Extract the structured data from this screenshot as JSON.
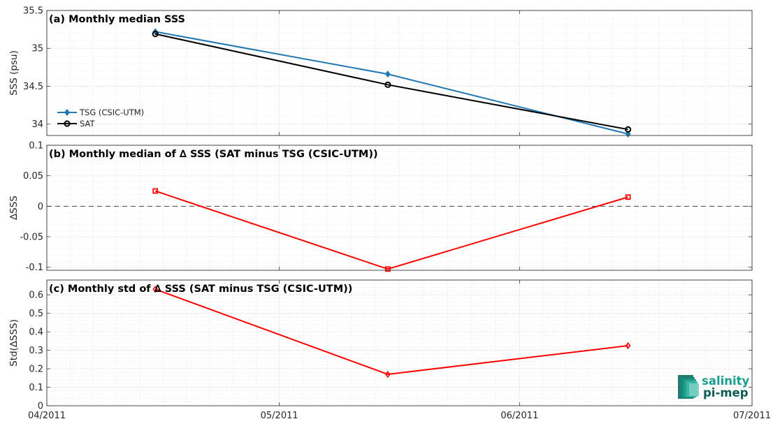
{
  "chart_data": [
    {
      "type": "line",
      "title": "(a) Monthly median SSS",
      "xlabel": "",
      "ylabel": "SSS (psu)",
      "x_ticks": [
        "04/2011",
        "05/2011",
        "06/2011",
        "07/2011"
      ],
      "x": [
        "2011-04-15",
        "2011-05-15",
        "2011-06-15"
      ],
      "ylim": [
        33.85,
        35.5
      ],
      "y_ticks": [
        "34",
        "34.5",
        "35",
        "35.5"
      ],
      "grid": true,
      "legend": "left",
      "series": [
        {
          "name": "TSG (CSIC-UTM)",
          "values": [
            35.22,
            34.66,
            33.87
          ],
          "color": "#1f77b4",
          "marker": "diamond"
        },
        {
          "name": "SAT",
          "values": [
            35.19,
            34.52,
            33.93
          ],
          "color": "#000000",
          "marker": "circle"
        }
      ]
    },
    {
      "type": "line",
      "title": "(b) Monthly median of ∆ SSS (SAT minus TSG (CSIC-UTM))",
      "xlabel": "",
      "ylabel": "∆SSS",
      "x": [
        "2011-04-15",
        "2011-05-15",
        "2011-06-15"
      ],
      "ylim": [
        -0.105,
        0.1
      ],
      "y_ticks": [
        "-0.1",
        "-0.05",
        "0",
        "0.05",
        "0.1"
      ],
      "grid": true,
      "reference_line": 0,
      "series": [
        {
          "values": [
            0.025,
            -0.103,
            0.015
          ],
          "color": "#ff0000",
          "marker": "square"
        }
      ]
    },
    {
      "type": "line",
      "title": "(c) Monthly std of ∆ SSS (SAT minus TSG (CSIC-UTM))",
      "xlabel": "",
      "ylabel": "Std(∆SSS)",
      "x": [
        "2011-04-15",
        "2011-05-15",
        "2011-06-15"
      ],
      "ylim": [
        0,
        0.68
      ],
      "y_ticks": [
        "0",
        "0.1",
        "0.2",
        "0.3",
        "0.4",
        "0.5",
        "0.6"
      ],
      "grid": true,
      "series": [
        {
          "values": [
            0.63,
            0.17,
            0.325
          ],
          "color": "#ff0000",
          "marker": "diamond"
        }
      ]
    }
  ],
  "logo": {
    "line1": "salinity",
    "line2": "pi-mep",
    "color": "#1a9e8f"
  }
}
